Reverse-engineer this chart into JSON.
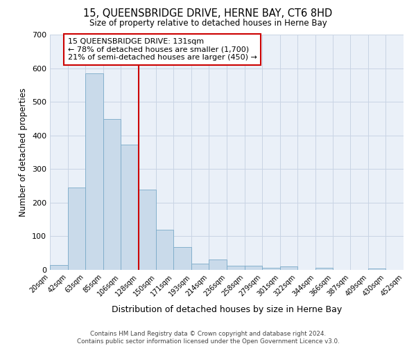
{
  "title": "15, QUEENSBRIDGE DRIVE, HERNE BAY, CT6 8HD",
  "subtitle": "Size of property relative to detached houses in Herne Bay",
  "xlabel": "Distribution of detached houses by size in Herne Bay",
  "ylabel": "Number of detached properties",
  "bar_color": "#c9daea",
  "bar_edge_color": "#7aaac8",
  "grid_color": "#c8d4e4",
  "background_color": "#eaf0f8",
  "vline_x": 128,
  "vline_color": "#cc0000",
  "categories": [
    "20sqm",
    "42sqm",
    "63sqm",
    "85sqm",
    "106sqm",
    "128sqm",
    "150sqm",
    "171sqm",
    "193sqm",
    "214sqm",
    "236sqm",
    "258sqm",
    "279sqm",
    "301sqm",
    "322sqm",
    "344sqm",
    "366sqm",
    "387sqm",
    "409sqm",
    "430sqm",
    "452sqm"
  ],
  "bin_edges": [
    20,
    42,
    63,
    85,
    106,
    128,
    150,
    171,
    193,
    214,
    236,
    258,
    279,
    301,
    322,
    344,
    366,
    387,
    409,
    430,
    452
  ],
  "values": [
    15,
    245,
    585,
    448,
    373,
    238,
    120,
    67,
    18,
    30,
    13,
    13,
    7,
    10,
    0,
    7,
    0,
    0,
    5,
    0
  ],
  "ylim": [
    0,
    700
  ],
  "yticks": [
    0,
    100,
    200,
    300,
    400,
    500,
    600,
    700
  ],
  "annotation_text": "15 QUEENSBRIDGE DRIVE: 131sqm\n← 78% of detached houses are smaller (1,700)\n21% of semi-detached houses are larger (450) →",
  "annotation_box_color": "#ffffff",
  "annotation_box_edge": "#cc0000",
  "footer_line1": "Contains HM Land Registry data © Crown copyright and database right 2024.",
  "footer_line2": "Contains public sector information licensed under the Open Government Licence v3.0."
}
